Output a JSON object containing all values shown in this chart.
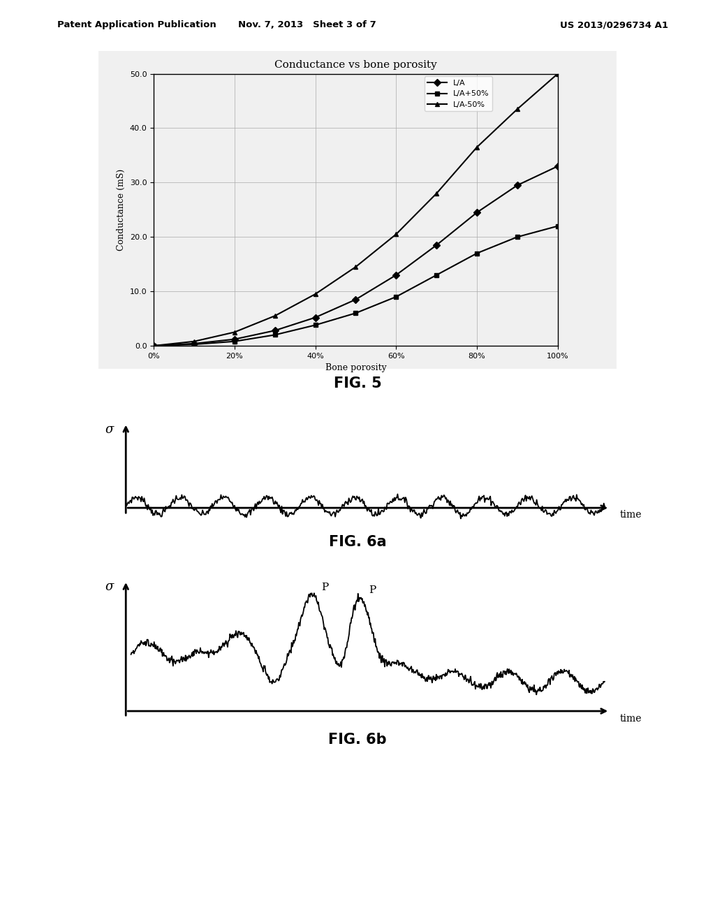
{
  "header_left": "Patent Application Publication",
  "header_mid": "Nov. 7, 2013   Sheet 3 of 7",
  "header_right": "US 2013/0296734 A1",
  "fig5_title": "Conductance vs bone porosity",
  "fig5_xlabel": "Bone porosity",
  "fig5_ylabel": "Conductance (mS)",
  "fig5_yticks": [
    0.0,
    10.0,
    20.0,
    30.0,
    40.0,
    50.0
  ],
  "fig5_xticks": [
    0,
    20,
    40,
    60,
    80,
    100
  ],
  "fig5_xtick_labels": [
    "0%",
    "20%",
    "40%",
    "60%",
    "80%",
    "100%"
  ],
  "fig5_LA_x": [
    0,
    10,
    20,
    30,
    40,
    50,
    60,
    70,
    80,
    90,
    100
  ],
  "fig5_LA_y": [
    0,
    0.4,
    1.2,
    2.8,
    5.2,
    8.5,
    13.0,
    18.5,
    24.5,
    29.5,
    33.0
  ],
  "fig5_LA_marker": "D",
  "fig5_LA_label": "L/A",
  "fig5_LAplus_x": [
    0,
    10,
    20,
    30,
    40,
    50,
    60,
    70,
    80,
    90,
    100
  ],
  "fig5_LAplus_y": [
    0,
    0.25,
    0.8,
    2.0,
    3.8,
    6.0,
    9.0,
    13.0,
    17.0,
    20.0,
    22.0
  ],
  "fig5_LAplus_marker": "s",
  "fig5_LAplus_label": "L/A+50%",
  "fig5_LAminus_x": [
    0,
    10,
    20,
    30,
    40,
    50,
    60,
    70,
    80,
    90,
    100
  ],
  "fig5_LAminus_y": [
    0,
    0.8,
    2.5,
    5.5,
    9.5,
    14.5,
    20.5,
    28.0,
    36.5,
    43.5,
    50.0
  ],
  "fig5_LAminus_marker": "^",
  "fig5_LAminus_label": "L/A-50%",
  "fig5_caption": "FIG. 5",
  "fig6a_caption": "FIG. 6a",
  "fig6b_caption": "FIG. 6b",
  "sigma_label": "σ",
  "time_label": "time",
  "background_color": "#ffffff",
  "line_color": "#000000"
}
